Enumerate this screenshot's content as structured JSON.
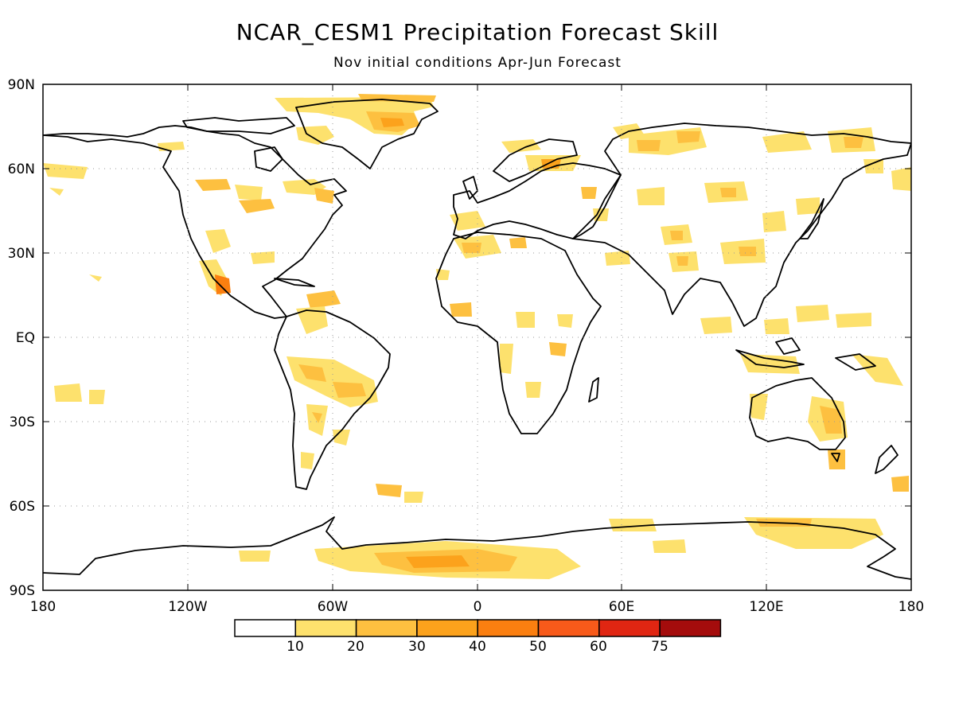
{
  "title": "NCAR_CESM1 Precipitation Forecast Skill",
  "subtitle": "Nov initial conditions   Apr-Jun Forecast",
  "axes": {
    "lat_ticks": [
      "90N",
      "60N",
      "30N",
      "EQ",
      "30S",
      "60S",
      "90S"
    ],
    "lon_ticks": [
      "180",
      "120W",
      "60W",
      "0",
      "60E",
      "120E",
      "180"
    ],
    "grid": "dotted"
  },
  "colorbar": {
    "labels": [
      "10",
      "20",
      "30",
      "40",
      "50",
      "60",
      "75"
    ],
    "colors": [
      "#ffffff",
      "#fde16d",
      "#fdc040",
      "#fca21c",
      "#fb7f10",
      "#f85a1a",
      "#e02612",
      "#a40c0c"
    ]
  },
  "colors": {
    "skill_10_20": "#fde16d",
    "skill_20_30": "#fdc040",
    "skill_30_40": "#fca21c",
    "coastline": "#000000"
  }
}
